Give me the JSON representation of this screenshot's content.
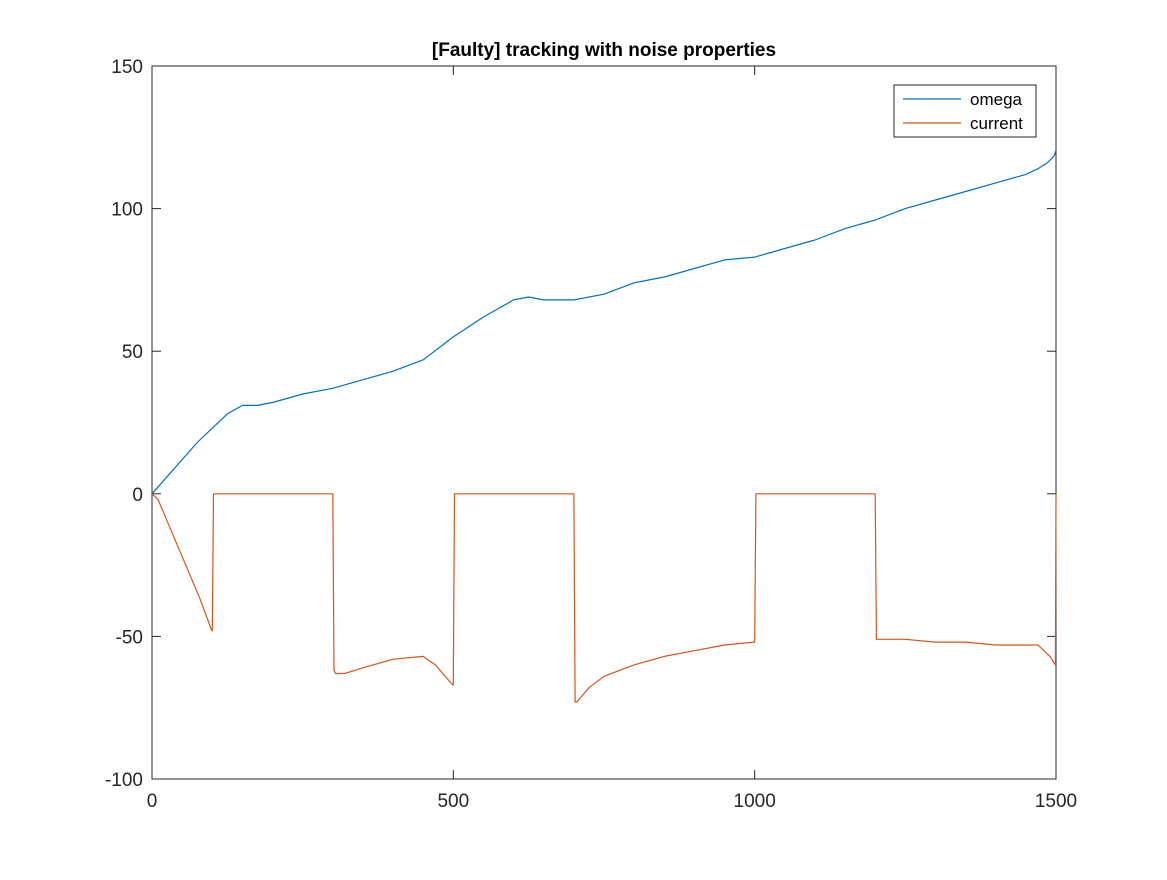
{
  "chart_data": {
    "type": "line",
    "title": "[Faulty] tracking with noise properties",
    "xlabel": "",
    "ylabel": "",
    "xlim": [
      0,
      1500
    ],
    "ylim": [
      -100,
      150
    ],
    "xticks": [
      0,
      500,
      1000,
      1500
    ],
    "yticks": [
      -100,
      -50,
      0,
      50,
      100,
      150
    ],
    "xtick_labels": [
      "0",
      "500",
      "1000",
      "1500"
    ],
    "ytick_labels": [
      "-100",
      "-50",
      "0",
      "50",
      "100",
      "150"
    ],
    "grid": false,
    "legend_position": "top-right",
    "series": [
      {
        "name": "omega",
        "color": "#0072BD",
        "x": [
          0,
          25,
          50,
          75,
          100,
          125,
          150,
          175,
          200,
          250,
          300,
          350,
          400,
          450,
          500,
          550,
          600,
          625,
          650,
          700,
          750,
          800,
          850,
          900,
          950,
          1000,
          1050,
          1100,
          1150,
          1200,
          1250,
          1300,
          1350,
          1400,
          1450,
          1470,
          1485,
          1495,
          1498,
          1499,
          1500
        ],
        "y": [
          0,
          6,
          12,
          18,
          23,
          28,
          31,
          31,
          32,
          35,
          37,
          40,
          43,
          47,
          55,
          62,
          68,
          69,
          68,
          68,
          70,
          74,
          76,
          79,
          82,
          83,
          86,
          89,
          93,
          96,
          100,
          103,
          106,
          109,
          112,
          114,
          116,
          118,
          119,
          120,
          120
        ]
      },
      {
        "name": "current",
        "color": "#D95319",
        "x": [
          0,
          10,
          20,
          40,
          60,
          80,
          99,
          100,
          101,
          102,
          150,
          200,
          250,
          299,
          300,
          301,
          302,
          305,
          320,
          350,
          400,
          450,
          470,
          499,
          500,
          501,
          502,
          550,
          600,
          650,
          699,
          700,
          701,
          702,
          705,
          725,
          750,
          775,
          800,
          850,
          900,
          950,
          999,
          1000,
          1001,
          1002,
          1050,
          1100,
          1150,
          1199,
          1200,
          1201,
          1202,
          1250,
          1300,
          1350,
          1400,
          1450,
          1470,
          1490,
          1499,
          1500
        ],
        "y": [
          0,
          -2,
          -7,
          -17,
          -27,
          -37,
          -48,
          -48,
          -25,
          0,
          0,
          0,
          0,
          0,
          0,
          -31,
          -62,
          -63,
          -63,
          -61,
          -58,
          -57,
          -60,
          -67,
          -67,
          -33,
          0,
          0,
          0,
          0,
          0,
          0,
          -37,
          -73,
          -73,
          -68,
          -64,
          -62,
          -60,
          -57,
          -55,
          -53,
          -52,
          -52,
          -26,
          0,
          0,
          0,
          0,
          0,
          0,
          -25,
          -51,
          -51,
          -52,
          -52,
          -53,
          -53,
          -53,
          -57,
          -60,
          0
        ]
      }
    ]
  }
}
